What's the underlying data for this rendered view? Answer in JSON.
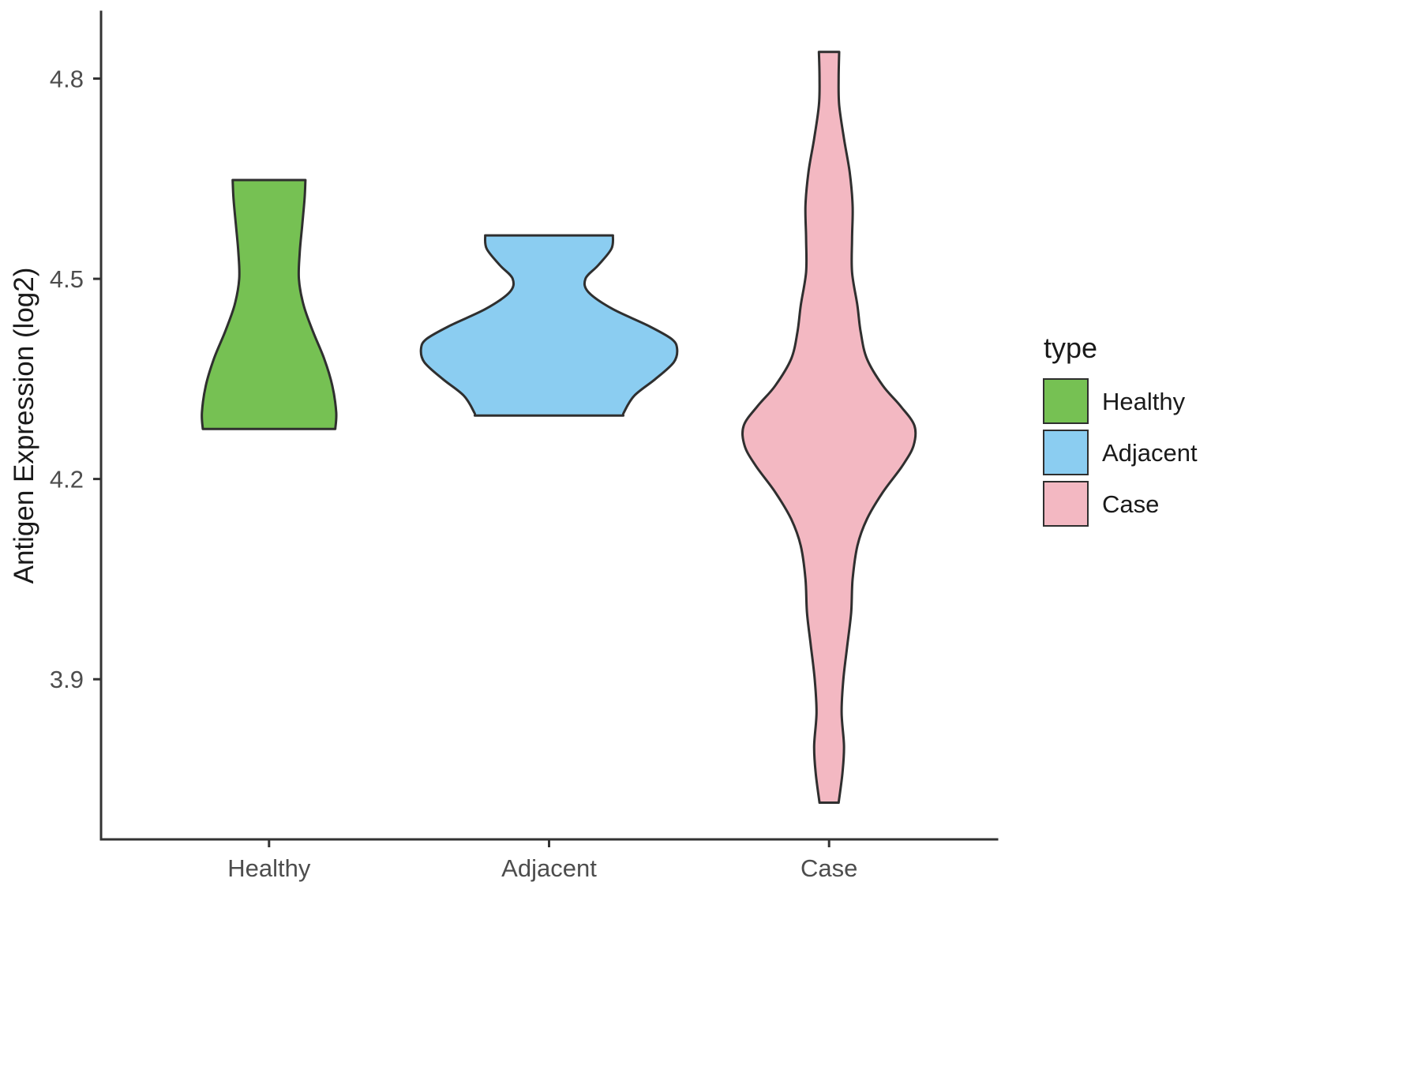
{
  "chart_data": {
    "type": "violin",
    "title": "",
    "xlabel": "",
    "ylabel": "Antigen Expression (log2)",
    "ylim": [
      3.66,
      4.9
    ],
    "yticks": [
      3.9,
      4.2,
      4.5,
      4.8
    ],
    "ytick_labels": [
      "3.9",
      "4.2",
      "4.5",
      "4.8"
    ],
    "categories": [
      "Healthy",
      "Adjacent",
      "Case"
    ],
    "grid": false,
    "legend": {
      "title": "type",
      "position": "right",
      "entries": [
        {
          "label": "Healthy",
          "color": "#76C153"
        },
        {
          "label": "Adjacent",
          "color": "#8BCDF1"
        },
        {
          "label": "Case",
          "color": "#F3B8C2"
        }
      ]
    },
    "series": [
      {
        "name": "Healthy",
        "color": "#76C153",
        "value_range": [
          4.275,
          4.648
        ],
        "profile": [
          [
            4.648,
            0.122
          ],
          [
            4.62,
            0.119
          ],
          [
            4.58,
            0.111
          ],
          [
            4.54,
            0.103
          ],
          [
            4.5,
            0.1
          ],
          [
            4.46,
            0.116
          ],
          [
            4.42,
            0.148
          ],
          [
            4.38,
            0.185
          ],
          [
            4.34,
            0.212
          ],
          [
            4.3,
            0.225
          ],
          [
            4.275,
            0.222
          ]
        ]
      },
      {
        "name": "Adjacent",
        "color": "#8BCDF1",
        "value_range": [
          4.295,
          4.565
        ],
        "profile": [
          [
            4.565,
            0.214
          ],
          [
            4.545,
            0.209
          ],
          [
            4.52,
            0.164
          ],
          [
            4.5,
            0.122
          ],
          [
            4.48,
            0.132
          ],
          [
            4.455,
            0.212
          ],
          [
            4.43,
            0.331
          ],
          [
            4.41,
            0.41
          ],
          [
            4.395,
            0.429
          ],
          [
            4.375,
            0.418
          ],
          [
            4.35,
            0.357
          ],
          [
            4.325,
            0.286
          ],
          [
            4.3,
            0.251
          ],
          [
            4.295,
            0.249
          ]
        ]
      },
      {
        "name": "Case",
        "color": "#F3B8C2",
        "value_range": [
          3.715,
          4.84
        ],
        "profile": [
          [
            4.84,
            0.034
          ],
          [
            4.8,
            0.032
          ],
          [
            4.76,
            0.034
          ],
          [
            4.71,
            0.05
          ],
          [
            4.66,
            0.069
          ],
          [
            4.61,
            0.079
          ],
          [
            4.56,
            0.077
          ],
          [
            4.51,
            0.077
          ],
          [
            4.46,
            0.095
          ],
          [
            4.42,
            0.106
          ],
          [
            4.38,
            0.127
          ],
          [
            4.34,
            0.18
          ],
          [
            4.31,
            0.238
          ],
          [
            4.28,
            0.286
          ],
          [
            4.25,
            0.283
          ],
          [
            4.22,
            0.246
          ],
          [
            4.18,
            0.18
          ],
          [
            4.14,
            0.127
          ],
          [
            4.1,
            0.095
          ],
          [
            4.05,
            0.079
          ],
          [
            4.0,
            0.074
          ],
          [
            3.95,
            0.061
          ],
          [
            3.9,
            0.048
          ],
          [
            3.85,
            0.042
          ],
          [
            3.8,
            0.05
          ],
          [
            3.76,
            0.045
          ],
          [
            3.715,
            0.032
          ]
        ]
      }
    ],
    "colors": {
      "outline": "#2F2F2F",
      "axis": "#333333",
      "tick_label": "#4D4D4D",
      "title_text": "#1A1A1A",
      "background": "#FFFFFF"
    }
  }
}
